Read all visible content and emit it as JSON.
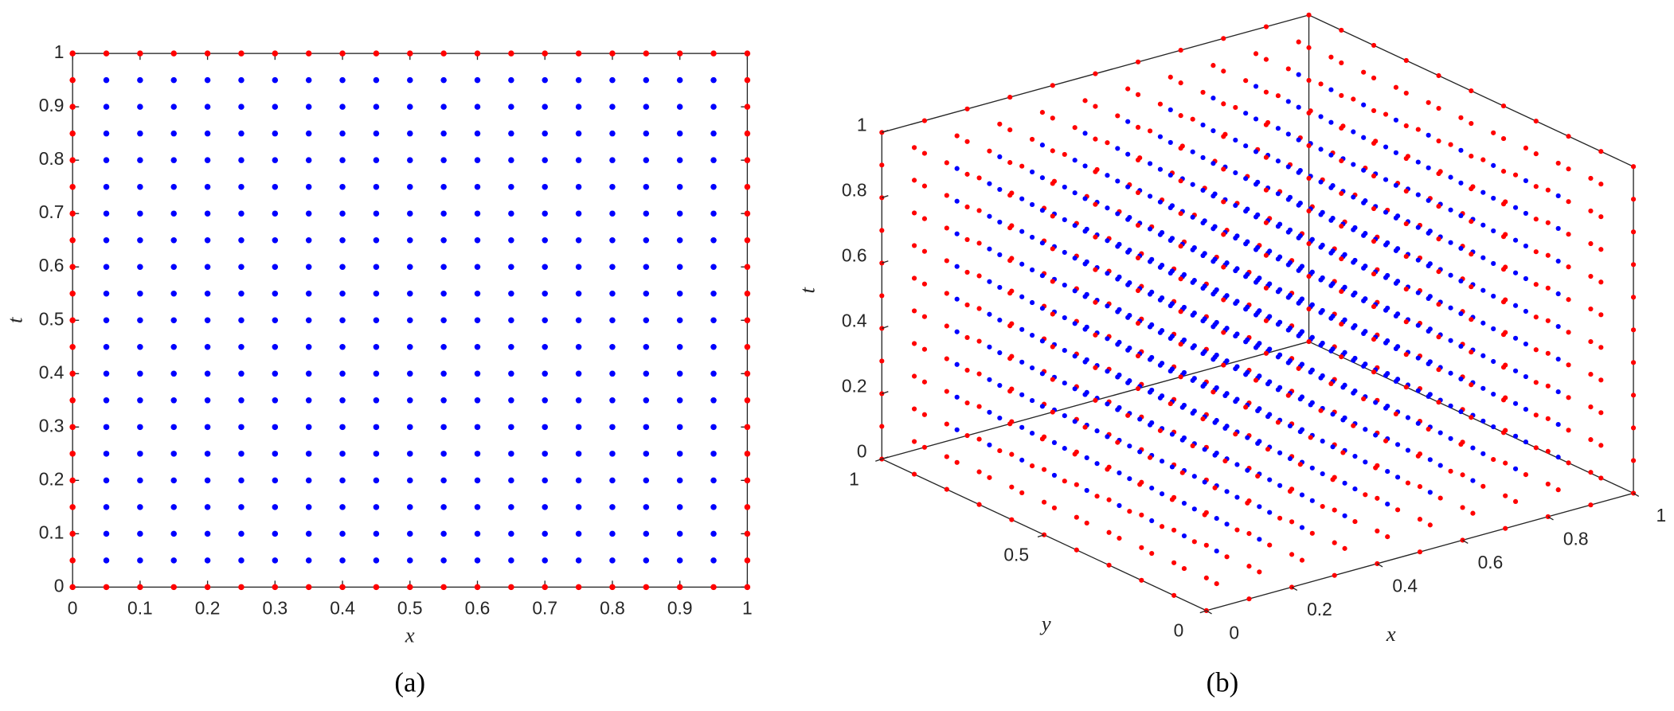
{
  "chart_data": [
    {
      "type": "grid2d",
      "caption": "(a)",
      "xlabel": "x",
      "ylabel": "t",
      "x": [
        0,
        0.05,
        0.1,
        0.15,
        0.2,
        0.25,
        0.3,
        0.35,
        0.4,
        0.45,
        0.5,
        0.55,
        0.6,
        0.65,
        0.7,
        0.75,
        0.8,
        0.85,
        0.9,
        0.95,
        1
      ],
      "t": [
        0,
        0.05,
        0.1,
        0.15,
        0.2,
        0.25,
        0.3,
        0.35,
        0.4,
        0.45,
        0.5,
        0.55,
        0.6,
        0.65,
        0.7,
        0.75,
        0.8,
        0.85,
        0.9,
        0.95,
        1
      ],
      "xlim": [
        0,
        1
      ],
      "tlim": [
        0,
        1
      ],
      "xticks": [
        0,
        0.1,
        0.2,
        0.3,
        0.4,
        0.5,
        0.6,
        0.7,
        0.8,
        0.9,
        1
      ],
      "tticks": [
        0,
        0.1,
        0.2,
        0.3,
        0.4,
        0.5,
        0.6,
        0.7,
        0.8,
        0.9,
        1
      ],
      "interior_color": "#0000ff",
      "boundary_color": "#ff0000"
    },
    {
      "type": "grid3d",
      "caption": "(b)",
      "xlabel": "x",
      "ylabel": "y",
      "tlabel": "t",
      "x": [
        0,
        0.1,
        0.2,
        0.3,
        0.4,
        0.5,
        0.6,
        0.7,
        0.8,
        0.9,
        1
      ],
      "y": [
        0,
        0.1,
        0.2,
        0.3,
        0.4,
        0.5,
        0.6,
        0.7,
        0.8,
        0.9,
        1
      ],
      "t": [
        0,
        0.1,
        0.2,
        0.3,
        0.4,
        0.5,
        0.6,
        0.7,
        0.8,
        0.9,
        1
      ],
      "xlim": [
        0,
        1
      ],
      "ylim": [
        0,
        1
      ],
      "tlim": [
        0,
        1
      ],
      "xticks": [
        0,
        0.2,
        0.4,
        0.6,
        0.8,
        1
      ],
      "yticks": [
        0,
        0.5,
        1
      ],
      "tticks": [
        0,
        0.2,
        0.4,
        0.6,
        0.8,
        1
      ],
      "interior_color": "#0000ff",
      "boundary_color": "#ff0000"
    }
  ]
}
